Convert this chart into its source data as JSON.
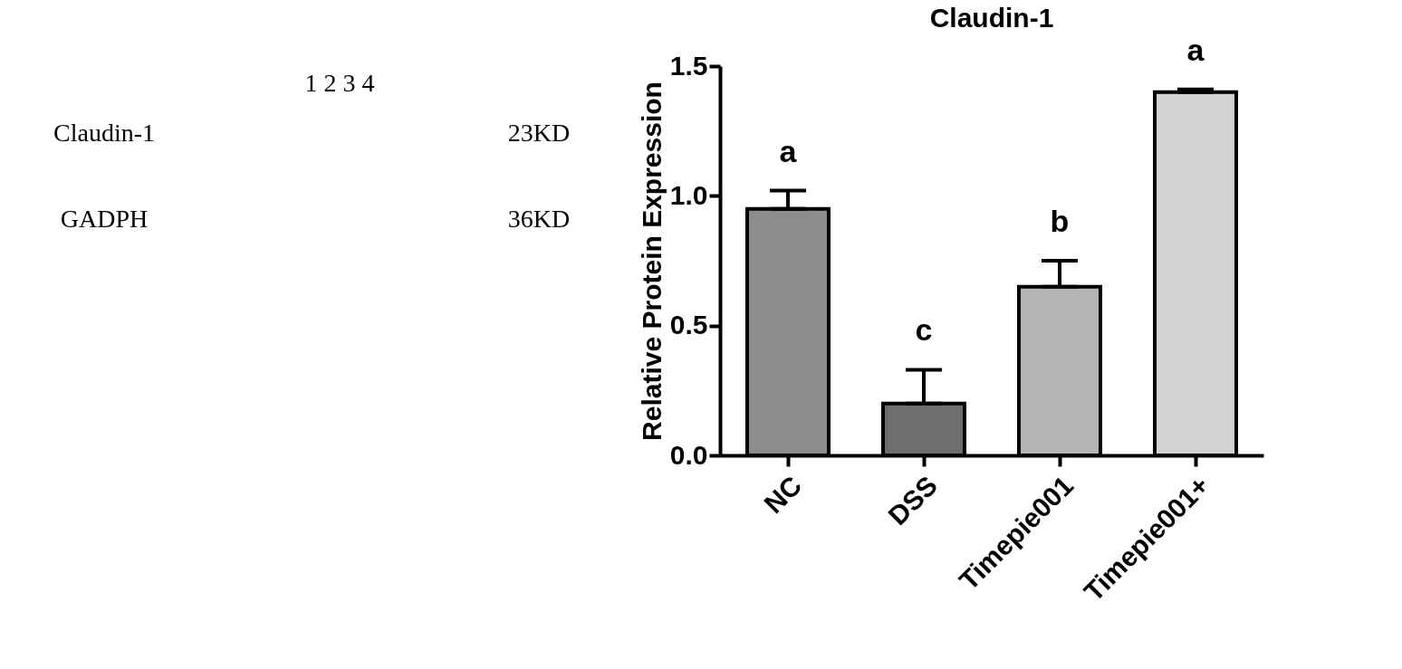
{
  "chart_data": [
    {
      "type": "other",
      "annotations": [
        "1 2 3 4",
        "Claudin-1",
        "23KD",
        "GADPH",
        "36KD"
      ]
    },
    {
      "type": "bar",
      "title": "Claudin-1",
      "ylabel": "Relative Protein Expression",
      "categories": [
        "NC",
        "DSS",
        "Timepie001",
        "Timepie001+"
      ],
      "values": [
        0.95,
        0.2,
        0.65,
        1.4
      ],
      "errors": [
        [
          0.95,
          1.02
        ],
        [
          0.2,
          0.33
        ],
        [
          0.65,
          0.75
        ],
        [
          1.4,
          1.41
        ]
      ],
      "colors": [
        "#8c8c8c",
        "#6e6e6e",
        "#b4b4b4",
        "#d2d2d2"
      ],
      "ylim": [
        0,
        1.5
      ],
      "yticks": [
        {
          "value": 0,
          "label": "0.0"
        },
        {
          "value": 0.5,
          "label": "0.5"
        },
        {
          "value": 1,
          "label": "1.0"
        },
        {
          "value": 1.5,
          "label": "1.5"
        }
      ],
      "annotations": [
        "a",
        "c",
        "b",
        "a"
      ],
      "grid": false
    }
  ]
}
